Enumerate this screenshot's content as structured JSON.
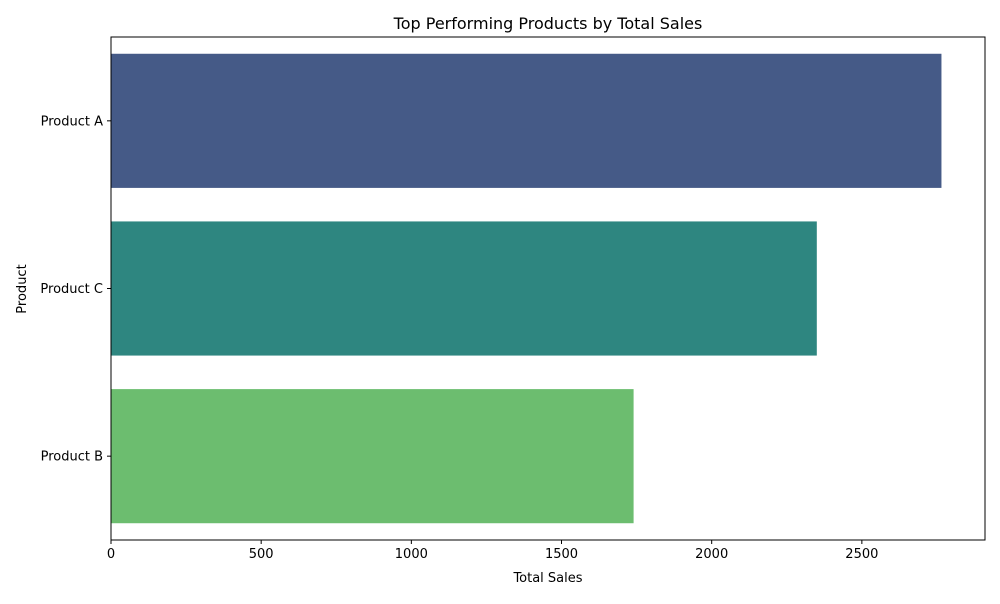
{
  "chart_data": {
    "type": "bar",
    "orientation": "horizontal",
    "title": "Top Performing Products by Total Sales",
    "xlabel": "Total Sales",
    "ylabel": "Product",
    "categories": [
      "Product A",
      "Product C",
      "Product B"
    ],
    "values": [
      2765,
      2350,
      1740
    ],
    "colors": [
      "#455a87",
      "#2e8680",
      "#6cbd6f"
    ],
    "xlim": [
      0,
      2910
    ],
    "xticks": [
      0,
      500,
      1000,
      1500,
      2000,
      2500
    ],
    "grid": false,
    "legend": "none"
  }
}
